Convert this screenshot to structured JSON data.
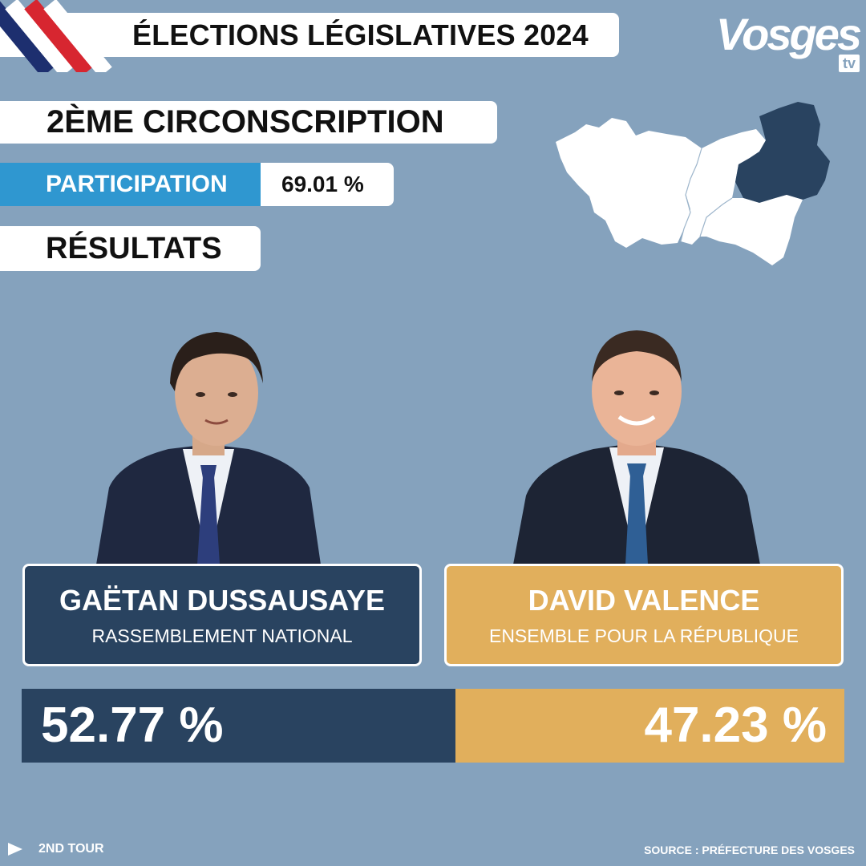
{
  "header": {
    "title": "ÉLECTIONS LÉGISLATIVES 2024",
    "logo_word": "Vosges",
    "logo_sub": "tv"
  },
  "circonscription": "2ÈME CIRCONSCRIPTION",
  "participation": {
    "label": "PARTICIPATION",
    "value": "69.01 %",
    "fraction": 0.6901
  },
  "results_label": "RÉSULTATS",
  "candidates": [
    {
      "name": "GAËTAN DUSSAUSAYE",
      "party": "RASSEMBLEMENT NATIONAL",
      "percent_text": "52.77 %",
      "share": 0.5277,
      "color": "#294360"
    },
    {
      "name": "DAVID VALENCE",
      "party": "ENSEMBLE POUR LA RÉPUBLIQUE",
      "percent_text": "47.23 %",
      "share": 0.4723,
      "color": "#e1af5c"
    }
  ],
  "footer": {
    "round": "2ND TOUR",
    "source": "SOURCE : PRÉFECTURE DES VOSGES"
  },
  "colors": {
    "background": "#85a2bd",
    "participation_accent": "#2f97d0",
    "rn_navy": "#294360",
    "ens_gold": "#e1af5c",
    "flag_blue": "#1d2f6f",
    "flag_red": "#d72630"
  },
  "icons": [
    "french-flag-icon",
    "vosges-map-icon",
    "play-icon"
  ]
}
